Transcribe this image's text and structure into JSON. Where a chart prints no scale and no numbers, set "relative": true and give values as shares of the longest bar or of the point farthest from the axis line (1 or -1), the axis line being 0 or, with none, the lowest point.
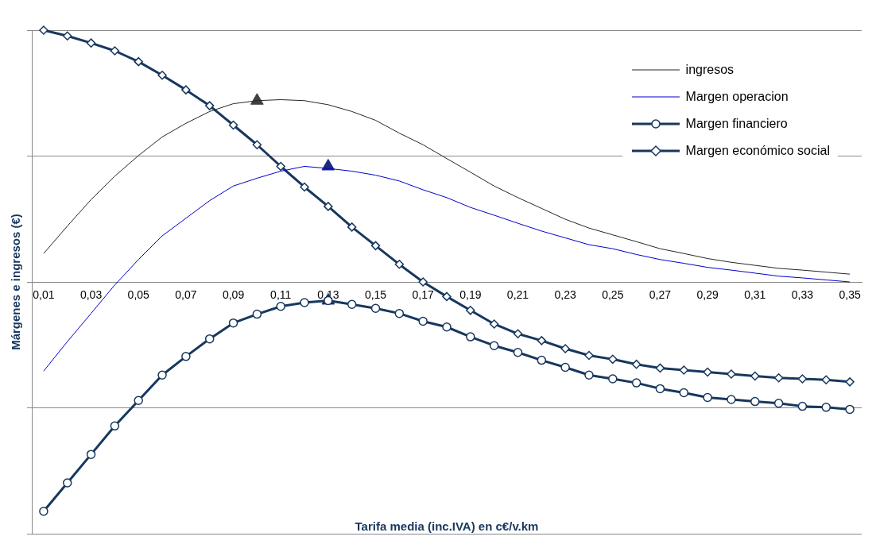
{
  "chart_data": {
    "type": "line",
    "relative": true,
    "xlabel": "Tarifa media (inc.IVA) en c€/v.km",
    "ylabel": "Márgenes e ingresos (€)",
    "grid": "y",
    "legend": "top right",
    "categories": [
      "0,01",
      null,
      "0,03",
      null,
      "0,05",
      null,
      "0,07",
      null,
      "0,09",
      null,
      "0,11",
      null,
      "0,13",
      null,
      "0,15",
      null,
      "0,17",
      null,
      "0,19",
      null,
      "0,21",
      null,
      "0,23",
      null,
      "0,25",
      null,
      "0,27",
      null,
      "0,29",
      null,
      "0,31",
      null,
      "0,33",
      null,
      "0,35"
    ],
    "series": [
      {
        "name": "ingresos",
        "color": "#262626",
        "marker": "none",
        "values": [
          0.113,
          0.222,
          0.327,
          0.42,
          0.502,
          0.576,
          0.63,
          0.677,
          0.708,
          0.72,
          0.724,
          0.72,
          0.704,
          0.677,
          0.642,
          0.591,
          0.545,
          0.49,
          0.436,
          0.381,
          0.335,
          0.292,
          0.249,
          0.214,
          0.187,
          0.16,
          0.132,
          0.113,
          0.093,
          0.078,
          0.066,
          0.054,
          0.047,
          0.039,
          0.031
        ]
      },
      {
        "name": "Margen operacion",
        "color": "#0000cc",
        "marker": "none",
        "values": [
          -0.354,
          -0.237,
          -0.125,
          -0.012,
          0.089,
          0.183,
          0.253,
          0.323,
          0.381,
          0.412,
          0.44,
          0.459,
          0.451,
          0.44,
          0.424,
          0.401,
          0.366,
          0.335,
          0.296,
          0.265,
          0.233,
          0.202,
          0.175,
          0.148,
          0.132,
          0.109,
          0.089,
          0.074,
          0.058,
          0.047,
          0.035,
          0.023,
          0.016,
          0.008,
          0
        ]
      },
      {
        "name": "Margen financiero",
        "color": "#17375e",
        "marker": "circle",
        "values": [
          -0.911,
          -0.798,
          -0.685,
          -0.572,
          -0.471,
          -0.37,
          -0.296,
          -0.226,
          -0.163,
          -0.128,
          -0.097,
          -0.082,
          -0.074,
          -0.089,
          -0.105,
          -0.125,
          -0.156,
          -0.179,
          -0.218,
          -0.253,
          -0.28,
          -0.311,
          -0.339,
          -0.37,
          -0.385,
          -0.401,
          -0.424,
          -0.44,
          -0.459,
          -0.467,
          -0.475,
          -0.482,
          -0.494,
          -0.498,
          -0.506
        ]
      },
      {
        "name": "Margen económico social",
        "color": "#17375e",
        "marker": "diamond",
        "values": [
          1,
          0.977,
          0.949,
          0.918,
          0.875,
          0.821,
          0.763,
          0.7,
          0.623,
          0.545,
          0.459,
          0.377,
          0.3,
          0.218,
          0.144,
          0.07,
          0,
          -0.058,
          -0.113,
          -0.167,
          -0.206,
          -0.233,
          -0.265,
          -0.292,
          -0.307,
          -0.327,
          -0.342,
          -0.35,
          -0.358,
          -0.366,
          -0.374,
          -0.381,
          -0.385,
          -0.389,
          -0.397
        ]
      },
      {
        "type": "scatter",
        "color": "#404040",
        "marker": "triangle",
        "values": [
          null,
          null,
          null,
          null,
          null,
          null,
          null,
          null,
          null,
          0.72,
          null,
          null,
          null,
          null,
          null,
          null,
          null,
          null,
          null,
          null,
          null,
          null,
          null,
          null,
          null,
          null,
          null,
          null,
          null,
          null,
          null,
          null,
          null,
          null,
          null
        ]
      },
      {
        "type": "scatter",
        "color": "#1a2a80",
        "marker": "triangle",
        "values": [
          null,
          null,
          null,
          null,
          null,
          null,
          null,
          null,
          null,
          null,
          null,
          null,
          0.459,
          null,
          null,
          null,
          null,
          null,
          null,
          null,
          null,
          null,
          null,
          null,
          null,
          null,
          null,
          null,
          null,
          null,
          null,
          null,
          null,
          null,
          null
        ]
      },
      {
        "type": "scatter",
        "color": "#1a2a80",
        "marker": "triangle",
        "values": [
          null,
          null,
          null,
          null,
          null,
          null,
          null,
          null,
          null,
          null,
          null,
          null,
          -0.074,
          null,
          null,
          null,
          null,
          null,
          null,
          null,
          null,
          null,
          null,
          null,
          null,
          null,
          null,
          null,
          null,
          null,
          null,
          null,
          null,
          null,
          null
        ]
      }
    ]
  }
}
